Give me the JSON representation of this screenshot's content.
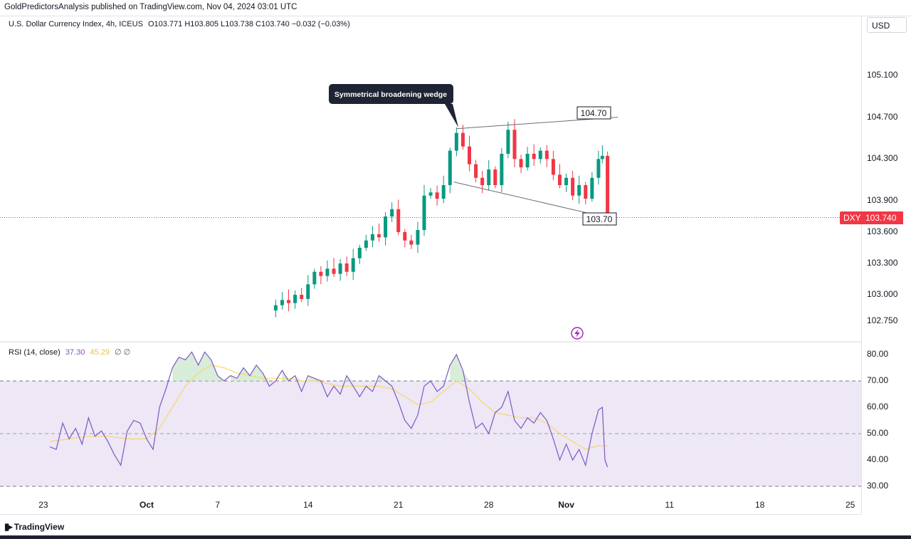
{
  "header": {
    "publisher": "GoldPredictorsAnalysis published on TradingView.com, Nov 04, 2024 03:01 UTC"
  },
  "legend": {
    "symbol": "U.S. Dollar Currency Index, 4h, ICEUS",
    "ohlc": "O103.771 H103.805 L103.738 C103.740 −0.032 (−0.03%)"
  },
  "rsi_legend": {
    "label": "RSI (14, close)",
    "rsi_value": "37.30",
    "ma_value": "45.29",
    "extra": "∅  ∅"
  },
  "axis": {
    "currency": "USD",
    "price_ticks": [
      "105.100",
      "104.700",
      "104.300",
      "103.900",
      "103.600",
      "103.300",
      "103.000",
      "102.750"
    ],
    "rsi_ticks": [
      "80.00",
      "70.00",
      "60.00",
      "50.00",
      "40.00",
      "30.00"
    ],
    "time_ticks": [
      "23",
      "Oct",
      "7",
      "14",
      "21",
      "28",
      "Nov",
      "11",
      "18",
      "25"
    ],
    "symbol_tag": "DXY",
    "last_price": "103.740"
  },
  "annotations": {
    "callout": "Symmetrical broadening wedge",
    "upper_label": "104.70",
    "lower_label": "103.70"
  },
  "footer": {
    "brand": "TradingView"
  },
  "colors": {
    "up": "#089981",
    "down": "#f23645",
    "rsi_line": "#7e57c2",
    "rsi_ma": "#f5d76e",
    "rsi_band": "#ede7f6"
  },
  "chart_data": [
    {
      "type": "candlestick",
      "title": "U.S. Dollar Currency Index, 4h, ICEUS",
      "y_axis": "USD",
      "ylim": [
        102.6,
        105.35
      ],
      "x_ticks": [
        "23",
        "Oct",
        "7",
        "14",
        "21",
        "28",
        "Nov",
        "11",
        "18",
        "25"
      ],
      "close_path": [
        {
          "x": 9.5,
          "close": 102.85
        },
        {
          "x": 10.0,
          "close": 102.9
        },
        {
          "x": 10.5,
          "close": 102.95
        },
        {
          "x": 11.0,
          "close": 102.92
        },
        {
          "x": 11.5,
          "close": 103.0
        },
        {
          "x": 12.0,
          "close": 102.96
        },
        {
          "x": 12.5,
          "close": 103.1
        },
        {
          "x": 13.0,
          "close": 103.22
        },
        {
          "x": 13.5,
          "close": 103.18
        },
        {
          "x": 14.0,
          "close": 103.25
        },
        {
          "x": 14.5,
          "close": 103.2
        },
        {
          "x": 15.0,
          "close": 103.3
        },
        {
          "x": 15.5,
          "close": 103.22
        },
        {
          "x": 16.0,
          "close": 103.35
        },
        {
          "x": 16.5,
          "close": 103.45
        },
        {
          "x": 17.0,
          "close": 103.52
        },
        {
          "x": 17.5,
          "close": 103.58
        },
        {
          "x": 18.0,
          "close": 103.55
        },
        {
          "x": 18.5,
          "close": 103.75
        },
        {
          "x": 19.0,
          "close": 103.82
        },
        {
          "x": 19.5,
          "close": 103.6
        },
        {
          "x": 20.0,
          "close": 103.52
        },
        {
          "x": 20.5,
          "close": 103.48
        },
        {
          "x": 21.0,
          "close": 103.62
        },
        {
          "x": 21.5,
          "close": 103.95
        },
        {
          "x": 22.0,
          "close": 103.98
        },
        {
          "x": 22.5,
          "close": 103.92
        },
        {
          "x": 23.0,
          "close": 104.05
        },
        {
          "x": 23.5,
          "close": 104.38
        },
        {
          "x": 24.0,
          "close": 104.55
        },
        {
          "x": 24.5,
          "close": 104.42
        },
        {
          "x": 25.0,
          "close": 104.25
        },
        {
          "x": 25.5,
          "close": 104.12
        },
        {
          "x": 26.0,
          "close": 104.05
        },
        {
          "x": 26.5,
          "close": 104.2
        },
        {
          "x": 27.0,
          "close": 104.05
        },
        {
          "x": 27.5,
          "close": 104.35
        },
        {
          "x": 28.0,
          "close": 104.58
        },
        {
          "x": 28.5,
          "close": 104.3
        },
        {
          "x": 29.0,
          "close": 104.22
        },
        {
          "x": 29.5,
          "close": 104.35
        },
        {
          "x": 30.0,
          "close": 104.3
        },
        {
          "x": 30.5,
          "close": 104.38
        },
        {
          "x": 31.0,
          "close": 104.3
        },
        {
          "x": 31.5,
          "close": 104.15
        },
        {
          "x": 32.0,
          "close": 104.05
        },
        {
          "x": 32.5,
          "close": 104.12
        },
        {
          "x": 33.0,
          "close": 103.95
        },
        {
          "x": 33.5,
          "close": 104.05
        },
        {
          "x": 34.0,
          "close": 103.92
        },
        {
          "x": 34.5,
          "close": 104.12
        },
        {
          "x": 35.0,
          "close": 104.3
        },
        {
          "x": 35.3,
          "close": 104.33
        },
        {
          "x": 35.7,
          "close": 103.74
        }
      ],
      "trendlines": [
        {
          "label": "upper",
          "from": [
            24.0,
            104.59
          ],
          "to": [
            36.5,
            104.7
          ]
        },
        {
          "label": "lower",
          "from": [
            23.8,
            104.08
          ],
          "to": [
            36.0,
            103.73
          ]
        }
      ],
      "last_price": 103.74
    },
    {
      "type": "line",
      "title": "RSI (14, close)",
      "ylim": [
        27,
        84
      ],
      "bands": [
        30,
        50,
        70
      ],
      "series": [
        {
          "name": "RSI",
          "points": [
            [
              -7.5,
              45
            ],
            [
              -7.0,
              44
            ],
            [
              -6.5,
              54
            ],
            [
              -6.0,
              48
            ],
            [
              -5.5,
              52
            ],
            [
              -5.0,
              46
            ],
            [
              -4.5,
              56
            ],
            [
              -4.0,
              49
            ],
            [
              -3.5,
              51
            ],
            [
              -3.0,
              47
            ],
            [
              -2.5,
              42
            ],
            [
              -2.0,
              38
            ],
            [
              -1.5,
              51
            ],
            [
              -1.0,
              55
            ],
            [
              -0.5,
              54
            ],
            [
              0.0,
              48
            ],
            [
              0.5,
              44
            ],
            [
              1.0,
              60
            ],
            [
              1.5,
              67
            ],
            [
              2.0,
              75
            ],
            [
              2.5,
              79
            ],
            [
              3.0,
              78
            ],
            [
              3.5,
              81
            ],
            [
              4.0,
              76
            ],
            [
              4.5,
              81
            ],
            [
              5.0,
              78
            ],
            [
              5.5,
              72
            ],
            [
              6.0,
              70
            ],
            [
              6.5,
              72
            ],
            [
              7.0,
              71
            ],
            [
              7.5,
              75
            ],
            [
              8.0,
              72
            ],
            [
              8.5,
              76
            ],
            [
              9.0,
              73
            ],
            [
              9.5,
              68
            ],
            [
              10.0,
              70
            ],
            [
              10.5,
              74
            ],
            [
              11.0,
              70
            ],
            [
              11.5,
              72
            ],
            [
              12.0,
              66
            ],
            [
              12.5,
              72
            ],
            [
              13.0,
              71
            ],
            [
              13.5,
              70
            ],
            [
              14.0,
              64
            ],
            [
              14.5,
              68
            ],
            [
              15.0,
              65
            ],
            [
              15.5,
              72
            ],
            [
              16.0,
              68
            ],
            [
              16.5,
              64
            ],
            [
              17.0,
              68
            ],
            [
              17.5,
              66
            ],
            [
              18.0,
              72
            ],
            [
              18.5,
              70
            ],
            [
              19.0,
              68
            ],
            [
              19.5,
              62
            ],
            [
              20.0,
              55
            ],
            [
              20.5,
              52
            ],
            [
              21.0,
              57
            ],
            [
              21.5,
              68
            ],
            [
              22.0,
              70
            ],
            [
              22.5,
              66
            ],
            [
              23.0,
              68
            ],
            [
              23.5,
              76
            ],
            [
              24.0,
              80
            ],
            [
              24.5,
              74
            ],
            [
              25.0,
              62
            ],
            [
              25.5,
              52
            ],
            [
              26.0,
              54
            ],
            [
              26.5,
              50
            ],
            [
              27.0,
              58
            ],
            [
              27.5,
              60
            ],
            [
              28.0,
              66
            ],
            [
              28.5,
              55
            ],
            [
              29.0,
              52
            ],
            [
              29.5,
              56
            ],
            [
              30.0,
              54
            ],
            [
              30.5,
              58
            ],
            [
              31.0,
              55
            ],
            [
              31.5,
              48
            ],
            [
              32.0,
              40
            ],
            [
              32.5,
              46
            ],
            [
              33.0,
              40
            ],
            [
              33.5,
              44
            ],
            [
              34.0,
              38
            ],
            [
              34.5,
              50
            ],
            [
              35.0,
              59
            ],
            [
              35.3,
              60
            ],
            [
              35.5,
              40
            ],
            [
              35.7,
              37.3
            ]
          ]
        },
        {
          "name": "MA",
          "points": [
            [
              -7.5,
              47
            ],
            [
              -6.0,
              48
            ],
            [
              -4.5,
              49
            ],
            [
              -3.0,
              49
            ],
            [
              -1.5,
              48
            ],
            [
              0.0,
              48
            ],
            [
              1.0,
              52
            ],
            [
              2.0,
              60
            ],
            [
              3.0,
              68
            ],
            [
              4.0,
              73
            ],
            [
              5.0,
              76
            ],
            [
              6.0,
              75
            ],
            [
              7.0,
              73
            ],
            [
              8.0,
              72
            ],
            [
              9.0,
              71
            ],
            [
              10.0,
              71
            ],
            [
              11.0,
              71
            ],
            [
              12.0,
              70
            ],
            [
              13.0,
              70
            ],
            [
              14.0,
              69
            ],
            [
              15.0,
              68
            ],
            [
              16.0,
              68
            ],
            [
              17.0,
              68
            ],
            [
              18.0,
              68
            ],
            [
              19.0,
              67
            ],
            [
              20.0,
              64
            ],
            [
              21.0,
              61
            ],
            [
              22.0,
              62
            ],
            [
              23.0,
              66
            ],
            [
              24.0,
              70
            ],
            [
              25.0,
              67
            ],
            [
              26.0,
              62
            ],
            [
              27.0,
              58
            ],
            [
              28.0,
              57
            ],
            [
              29.0,
              56
            ],
            [
              30.0,
              56
            ],
            [
              31.0,
              54
            ],
            [
              32.0,
              50
            ],
            [
              33.0,
              47
            ],
            [
              34.0,
              44
            ],
            [
              35.0,
              45.5
            ],
            [
              35.7,
              45.29
            ]
          ]
        }
      ],
      "last_values": {
        "RSI": 37.3,
        "MA": 45.29
      }
    }
  ]
}
